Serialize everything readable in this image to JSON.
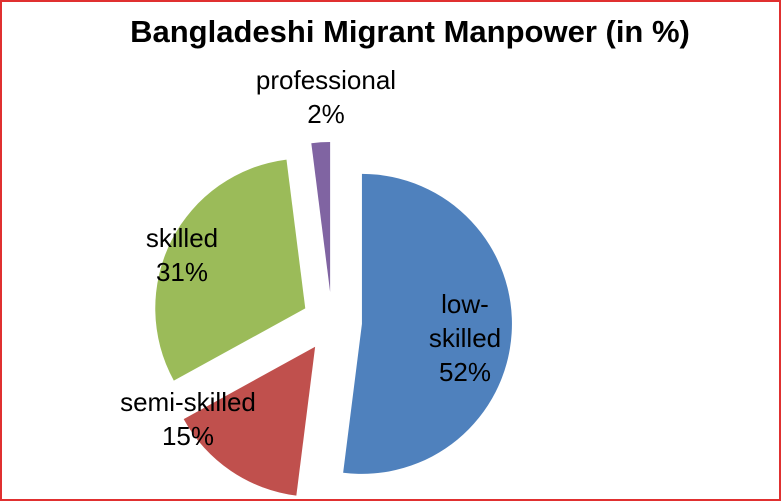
{
  "chart_data": {
    "type": "pie",
    "title": "Bangladeshi Migrant Manpower (in %)",
    "categories": [
      "low-skilled",
      "semi-skilled",
      "skilled",
      "professional"
    ],
    "values": [
      52,
      15,
      31,
      2
    ],
    "value_labels": [
      "52%",
      "15%",
      "31%",
      "2%"
    ],
    "colors": [
      "#4f81bd",
      "#c0504d",
      "#9bbb59",
      "#8064a2"
    ]
  }
}
